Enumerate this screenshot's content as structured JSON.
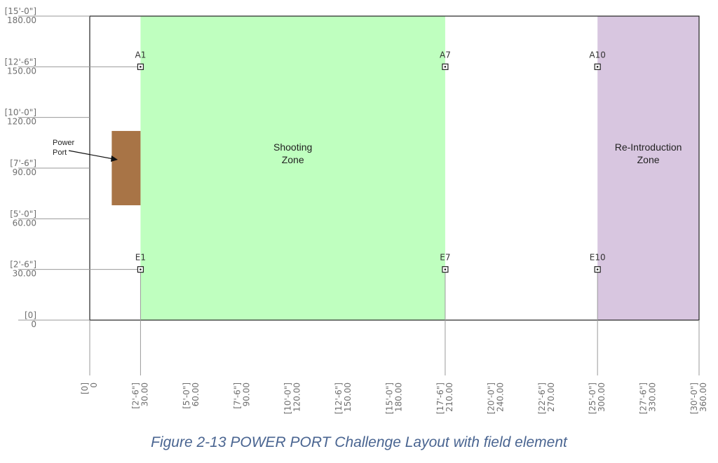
{
  "caption": "Figure 2-13 POWER PORT Challenge Layout with field element",
  "colors": {
    "shooting_zone": "#bfffbf",
    "reintroduction_zone": "#d8c6e0",
    "power_port": "#a87446",
    "field_border": "#222222",
    "dimension_lines": "#9a9a9a",
    "caption": "#4a6591"
  },
  "field": {
    "units": "inches",
    "x_range": [
      0,
      360
    ],
    "y_range": [
      0,
      180
    ],
    "shooting_zone": {
      "label_lines": [
        "Shooting",
        "Zone"
      ],
      "x_range": [
        30,
        210
      ]
    },
    "reintroduction_zone": {
      "label_lines": [
        "Re-Introduction",
        "Zone"
      ],
      "x_range": [
        300,
        360
      ]
    },
    "power_port": {
      "label_lines": [
        "Power",
        "Port"
      ],
      "x_range": [
        13,
        30
      ],
      "y_range": [
        68,
        112
      ]
    },
    "markers": [
      {
        "id": "A1",
        "x": 30,
        "y": 150
      },
      {
        "id": "A7",
        "x": 210,
        "y": 150
      },
      {
        "id": "A10",
        "x": 300,
        "y": 150
      },
      {
        "id": "E1",
        "x": 30,
        "y": 30
      },
      {
        "id": "E7",
        "x": 210,
        "y": 30
      },
      {
        "id": "E10",
        "x": 300,
        "y": 30
      }
    ]
  },
  "y_ticks": [
    {
      "value": 180,
      "feet": "[15'-0\"]",
      "decimal": "180.00"
    },
    {
      "value": 150,
      "feet": "[12'-6\"]",
      "decimal": "150.00"
    },
    {
      "value": 120,
      "feet": "[10'-0\"]",
      "decimal": "120.00"
    },
    {
      "value": 90,
      "feet": "[7'-6\"]",
      "decimal": "90.00"
    },
    {
      "value": 60,
      "feet": "[5'-0\"]",
      "decimal": "60.00"
    },
    {
      "value": 30,
      "feet": "[2'-6\"]",
      "decimal": "30.00"
    },
    {
      "value": 0,
      "feet": "[0]",
      "decimal": "0"
    }
  ],
  "x_ticks": [
    {
      "value": 0,
      "feet": "[0]",
      "decimal": "0"
    },
    {
      "value": 30,
      "feet": "[2'-6\"]",
      "decimal": "30.00"
    },
    {
      "value": 60,
      "feet": "[5'-0\"]",
      "decimal": "60.00"
    },
    {
      "value": 90,
      "feet": "[7'-6\"]",
      "decimal": "90.00"
    },
    {
      "value": 120,
      "feet": "[10'-0\"]",
      "decimal": "120.00"
    },
    {
      "value": 150,
      "feet": "[12'-6\"]",
      "decimal": "150.00"
    },
    {
      "value": 180,
      "feet": "[15'-0\"]",
      "decimal": "180.00"
    },
    {
      "value": 210,
      "feet": "[17'-6\"]",
      "decimal": "210.00"
    },
    {
      "value": 240,
      "feet": "[20'-0\"]",
      "decimal": "240.00"
    },
    {
      "value": 270,
      "feet": "[22'-6\"]",
      "decimal": "270.00"
    },
    {
      "value": 300,
      "feet": "[25'-0\"]",
      "decimal": "300.00"
    },
    {
      "value": 330,
      "feet": "[27'-6\"]",
      "decimal": "330.00"
    },
    {
      "value": 360,
      "feet": "[30'-0\"]",
      "decimal": "360.00"
    }
  ]
}
